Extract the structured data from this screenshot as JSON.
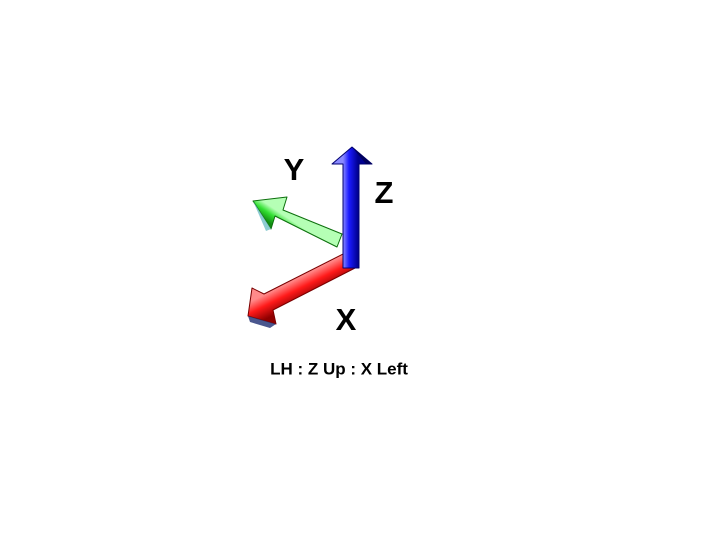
{
  "diagram": {
    "caption": "LH : Z Up : X Left",
    "axes": [
      {
        "id": "x",
        "label": "X",
        "color": "#ff1a1a",
        "color_dark": "#8f0000",
        "color_light": "#ff8a8a"
      },
      {
        "id": "y",
        "label": "Y",
        "color": "#33e033",
        "color_dark": "#118a11",
        "color_light": "#b5ffb5"
      },
      {
        "id": "z",
        "label": "Z",
        "color": "#1a1aff",
        "color_dark": "#000090",
        "color_light": "#8a8aff"
      }
    ]
  }
}
